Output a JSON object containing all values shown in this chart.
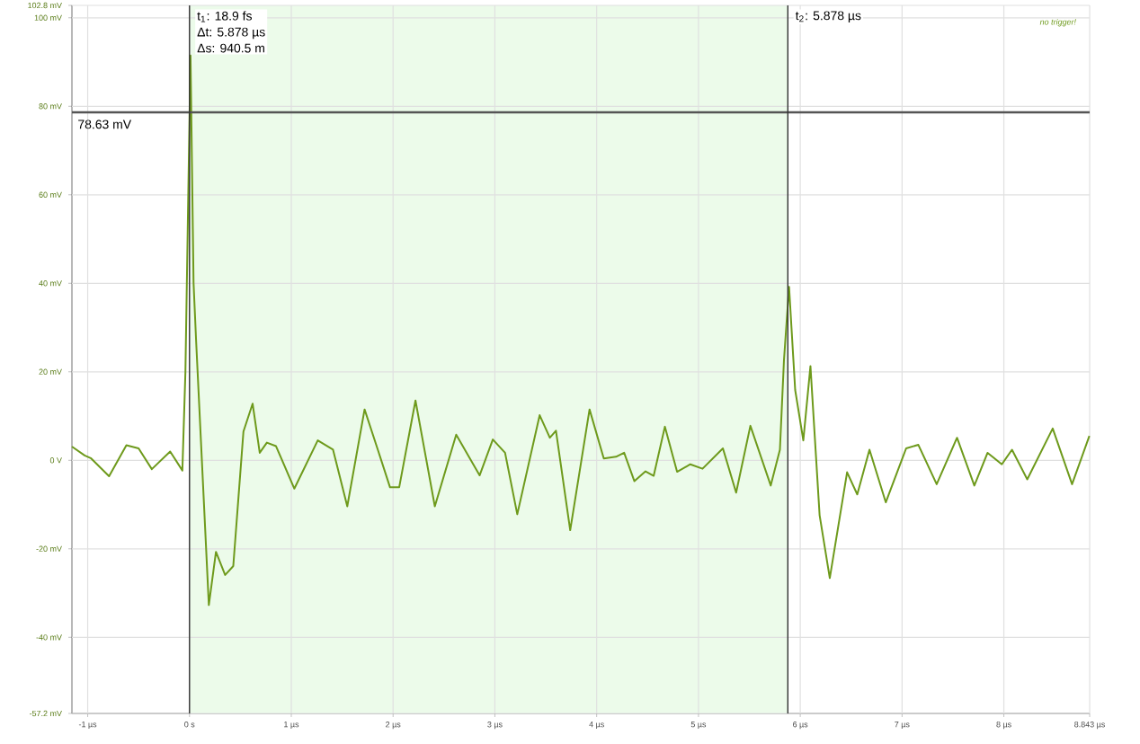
{
  "chart_data": {
    "type": "line",
    "color": "#6e9a1c",
    "x": [
      -1.155,
      -1.03,
      -0.97,
      -0.79,
      -0.62,
      -0.5,
      -0.37,
      -0.19,
      -0.07,
      -0.04,
      0.01,
      0.04,
      0.065,
      0.19,
      0.26,
      0.35,
      0.43,
      0.53,
      0.62,
      0.69,
      0.76,
      0.85,
      1.03,
      1.26,
      1.41,
      1.55,
      1.72,
      1.85,
      1.97,
      2.06,
      2.22,
      2.41,
      2.62,
      2.85,
      2.98,
      3.1,
      3.22,
      3.44,
      3.54,
      3.6,
      3.74,
      3.93,
      4.07,
      4.19,
      4.27,
      4.37,
      4.48,
      4.56,
      4.67,
      4.79,
      4.92,
      5.04,
      5.24,
      5.37,
      5.51,
      5.71,
      5.8,
      5.84,
      5.89,
      5.95,
      6.03,
      6.1,
      6.19,
      6.29,
      6.46,
      6.56,
      6.68,
      6.84,
      7.04,
      7.16,
      7.34,
      7.54,
      7.71,
      7.84,
      7.98,
      8.08,
      8.23,
      8.48,
      8.67,
      8.84
    ],
    "values": [
      3.1,
      1.1,
      0.5,
      -3.6,
      3.4,
      2.7,
      -2.0,
      2.0,
      -2.3,
      20,
      91.5,
      40,
      27,
      -32.7,
      -20.7,
      -25.9,
      -23.9,
      6.5,
      12.8,
      1.7,
      4.0,
      3.2,
      -6.4,
      4.5,
      2.4,
      -10.4,
      11.5,
      2.4,
      -6.1,
      -6.1,
      13.5,
      -10.4,
      5.8,
      -3.4,
      4.7,
      1.7,
      -12.2,
      10.2,
      5.1,
      6.7,
      -15.8,
      11.5,
      0.4,
      0.8,
      1.7,
      -4.7,
      -2.5,
      -3.5,
      7.6,
      -2.6,
      -0.9,
      -1.9,
      2.7,
      -7.3,
      7.8,
      -5.7,
      2.4,
      22.7,
      39.2,
      15.9,
      4.5,
      21.3,
      -12.4,
      -26.6,
      -2.7,
      -7.7,
      2.4,
      -9.5,
      2.7,
      3.5,
      -5.4,
      5.1,
      -5.7,
      1.7,
      -0.9,
      2.4,
      -4.3,
      7.2,
      -5.4,
      5.5
    ],
    "xlim": [
      -1.155,
      8.843
    ],
    "xticks": [
      {
        "value": -1,
        "label": "-1 µs"
      },
      {
        "value": 0,
        "label": "0 s"
      },
      {
        "value": 1,
        "label": "1 µs"
      },
      {
        "value": 2,
        "label": "2 µs"
      },
      {
        "value": 3,
        "label": "3 µs"
      },
      {
        "value": 4,
        "label": "4 µs"
      },
      {
        "value": 5,
        "label": "5 µs"
      },
      {
        "value": 6,
        "label": "6 µs"
      },
      {
        "value": 7,
        "label": "7 µs"
      },
      {
        "value": 8,
        "label": "8 µs"
      },
      {
        "value": 8.843,
        "label": "8.843 µs"
      }
    ],
    "ylim": [
      -57.2,
      102.8
    ],
    "yticks": [
      {
        "value": -57.2,
        "label": "-57.2 mV"
      },
      {
        "value": -40,
        "label": "-40 mV"
      },
      {
        "value": -20,
        "label": "-20 mV"
      },
      {
        "value": 0,
        "label": "0 V"
      },
      {
        "value": 20,
        "label": "20 mV"
      },
      {
        "value": 40,
        "label": "40 mV"
      },
      {
        "value": 60,
        "label": "60 mV"
      },
      {
        "value": 80,
        "label": "80 mV"
      },
      {
        "value": 100,
        "label": "100 mV"
      },
      {
        "value": 102.8,
        "label": "102.8 mV"
      }
    ],
    "grid": true,
    "marker": "none",
    "bands": [
      {
        "axis": "x",
        "from": 0,
        "to": 5.878,
        "color": "#ecfbea"
      }
    ],
    "ref_lines": [
      {
        "axis": "y",
        "value": 78.63,
        "label": "78.63 mV",
        "color": "#555555"
      },
      {
        "axis": "x",
        "value": 1.89e-08,
        "label": "t$_{1}$: 18.9 fs",
        "color": "#333333"
      },
      {
        "axis": "x",
        "value": 5.878,
        "label": "t$_{2}$: 5.878 µs",
        "color": "#333333"
      }
    ],
    "annotations": [
      "Δt: 5.878 µs",
      "Δs: 940.5 m",
      "no trigger!"
    ]
  }
}
